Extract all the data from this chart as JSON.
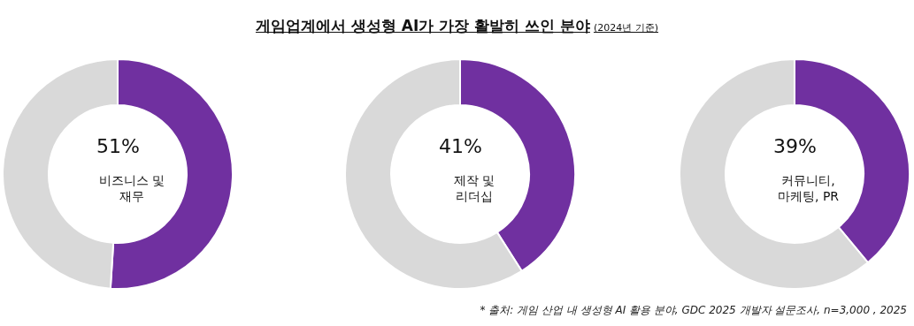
{
  "chart_data": [
    {
      "type": "donut",
      "categories": [
        "비즈니스 및\n재무",
        null
      ],
      "values": [
        51,
        49
      ],
      "colors": [
        "#7030a0",
        "#d9d9d9"
      ],
      "value_labels": [
        "51%",
        null
      ],
      "legend": false
    },
    {
      "type": "donut",
      "title": "게임업계에서 생성형 AI가 가장 활발히 쓰인 분야",
      "subtitle": "(2024년 기준)",
      "categories": [
        "제작 및\n리더십",
        null
      ],
      "values": [
        41,
        59
      ],
      "colors": [
        "#7030a0",
        "#d9d9d9"
      ],
      "value_labels": [
        "41%",
        null
      ],
      "legend": false
    },
    {
      "type": "donut",
      "categories": [
        "커뮤니티,\n마케팅, PR",
        null
      ],
      "values": [
        39,
        61
      ],
      "colors": [
        "#7030a0",
        "#d9d9d9"
      ],
      "value_labels": [
        "39%",
        null
      ],
      "legend": false,
      "annotations": [
        "* 출처: 게임 산업 내 생성형 AI  활용 분야, GDC 2025 개발자 설문조사,  n=3,000 , 2025"
      ]
    }
  ]
}
